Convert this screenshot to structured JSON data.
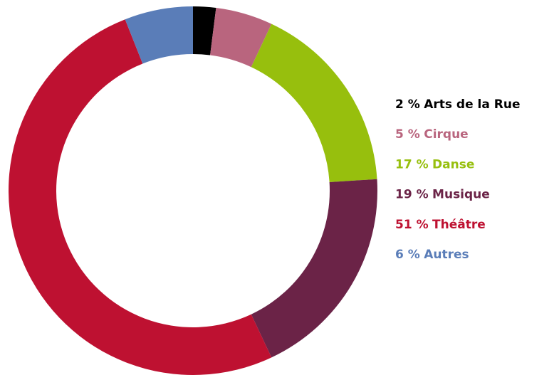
{
  "chart_data": {
    "type": "donut",
    "categories": [
      "Arts de la Rue",
      "Cirque",
      "Danse",
      "Musique",
      "Théâtre",
      "Autres"
    ],
    "values": [
      2,
      5,
      17,
      19,
      51,
      6
    ],
    "value_labels": [
      "2 %",
      "5 %",
      "17 %",
      "19 %",
      "51 %",
      "6 %"
    ],
    "colors": [
      "#000000",
      "#b9657e",
      "#97bf0d",
      "#6b2347",
      "#be1131",
      "#5a7db8"
    ],
    "legend": "right"
  }
}
